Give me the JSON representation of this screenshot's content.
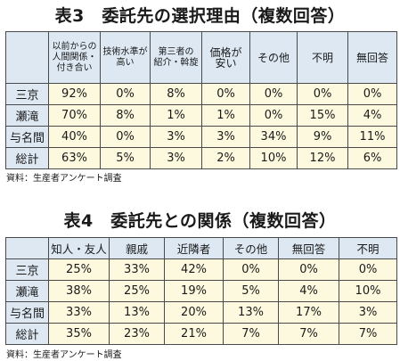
{
  "table3": {
    "title": "表3　委託先の選択理由（複数回答）",
    "headers": [
      "以前からの人間関係・付き合い",
      "技術水準が高い",
      "第三者の紹介・斡旋",
      "価格が安い",
      "その他",
      "不明",
      "無回答"
    ],
    "header_lines": [
      [
        "以前からの",
        "人間関係・",
        "付き合い"
      ],
      [
        "技術水準が",
        "高い"
      ],
      [
        "第三者の",
        "紹介・斡旋"
      ],
      [
        "価格が",
        "安い"
      ],
      [
        "その他"
      ],
      [
        "不明"
      ],
      [
        "無回答"
      ]
    ],
    "rows": [
      {
        "label": "三京",
        "values": [
          "92%",
          "0%",
          "8%",
          "0%",
          "0%",
          "0%",
          "0%"
        ]
      },
      {
        "label": "瀬滝",
        "values": [
          "70%",
          "8%",
          "1%",
          "1%",
          "0%",
          "15%",
          "4%"
        ]
      },
      {
        "label": "与名間",
        "values": [
          "40%",
          "0%",
          "3%",
          "3%",
          "34%",
          "9%",
          "11%"
        ]
      },
      {
        "label": "総計",
        "values": [
          "63%",
          "5%",
          "3%",
          "2%",
          "10%",
          "12%",
          "6%"
        ]
      }
    ],
    "source": "資料：生産者アンケート調査"
  },
  "table4": {
    "title": "表4　委託先との関係（複数回答）",
    "headers": [
      "知人・友人",
      "親戚",
      "近隣者",
      "その他",
      "無回答",
      "不明"
    ],
    "rows": [
      {
        "label": "三京",
        "values": [
          "25%",
          "33%",
          "42%",
          "0%",
          "0%",
          "0%"
        ]
      },
      {
        "label": "瀬滝",
        "values": [
          "38%",
          "25%",
          "19%",
          "5%",
          "4%",
          "10%"
        ]
      },
      {
        "label": "与名間",
        "values": [
          "33%",
          "13%",
          "20%",
          "13%",
          "17%",
          "3%"
        ]
      },
      {
        "label": "総計",
        "values": [
          "35%",
          "23%",
          "21%",
          "7%",
          "7%",
          "7%"
        ]
      }
    ],
    "source": "資料：生産者アンケート調査"
  },
  "colors": {
    "header_bg": "#dde8f3",
    "cell_bg": "#fdf9de",
    "border": "#4a4a4a"
  }
}
